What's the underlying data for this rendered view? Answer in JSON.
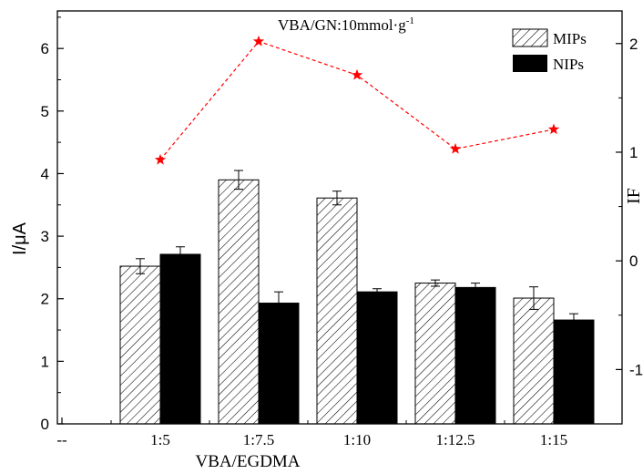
{
  "chart_data": {
    "type": "bar",
    "title": "VBA/GN:10mmol·g",
    "title_superscript": "-1",
    "xlabel": "VBA/EGDMA",
    "ylabel": "I/μA",
    "y2label": "IF",
    "categories": [
      "--",
      "1:5",
      "1:7.5",
      "1:10",
      "1:12.5",
      "1:15"
    ],
    "ylim": [
      0,
      6.6
    ],
    "yticks": [
      "0",
      "1",
      "2",
      "3",
      "4",
      "5",
      "6"
    ],
    "y2lim": [
      -1.5,
      2.3
    ],
    "y2ticks": [
      "-1",
      "0",
      "1",
      "2"
    ],
    "legend_position": "top-right",
    "grid": false,
    "series": [
      {
        "name": "MIPs",
        "style": "hatched",
        "values": [
          null,
          2.52,
          3.9,
          3.61,
          2.25,
          2.01
        ],
        "errors": [
          null,
          0.12,
          0.15,
          0.11,
          0.05,
          0.18
        ]
      },
      {
        "name": "NIPs",
        "style": "solid",
        "values": [
          null,
          2.71,
          1.93,
          2.11,
          2.18,
          1.66
        ],
        "errors": [
          null,
          0.12,
          0.18,
          0.05,
          0.07,
          0.1
        ]
      },
      {
        "name": "IF",
        "type": "line",
        "axis": "right",
        "marker": "star",
        "color": "#ff0000",
        "values": [
          null,
          0.93,
          2.02,
          1.71,
          1.03,
          1.21
        ]
      }
    ]
  }
}
